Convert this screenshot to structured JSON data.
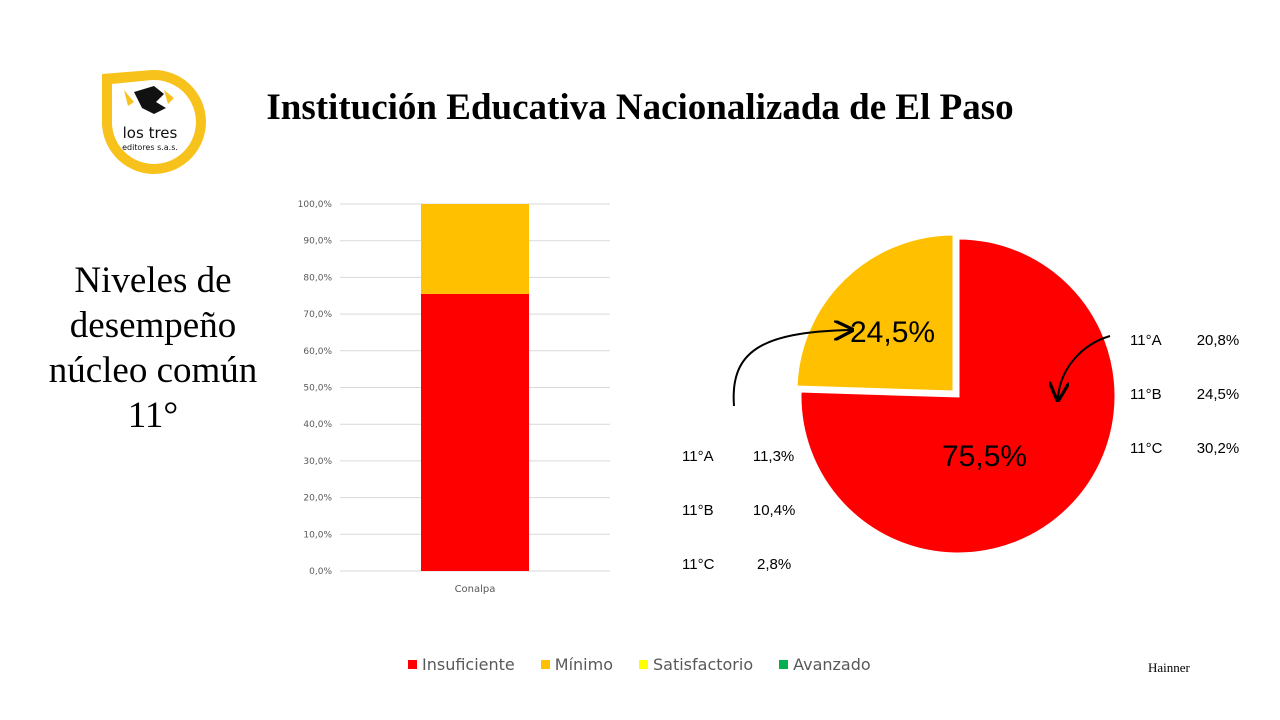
{
  "logo": {
    "brand_line1": "los tres",
    "brand_line2": "editores s.a.s."
  },
  "title": "Institución Educativa Nacionalizada de El Paso",
  "side_title": "Niveles de desempeño núcleo común 11°",
  "colors": {
    "insuficiente": "#ff0000",
    "minimo": "#ffc000",
    "satisfactorio": "#ffff00",
    "avanzado": "#00b050",
    "logo_yellow": "#f7c21b"
  },
  "chart_data": [
    {
      "type": "bar",
      "stacked": true,
      "categories": [
        "Conalpa"
      ],
      "series": [
        {
          "name": "Insuficiente",
          "values": [
            75.5
          ]
        },
        {
          "name": "Mínimo",
          "values": [
            24.5
          ]
        },
        {
          "name": "Satisfactorio",
          "values": [
            0
          ]
        },
        {
          "name": "Avanzado",
          "values": [
            0
          ]
        }
      ],
      "ylim": [
        0,
        100
      ],
      "yticks": [
        "0,0%",
        "10,0%",
        "20,0%",
        "30,0%",
        "40,0%",
        "50,0%",
        "60,0%",
        "70,0%",
        "80,0%",
        "90,0%",
        "100,0%"
      ],
      "grid": true
    },
    {
      "type": "pie",
      "slices": [
        {
          "label": "75,5%",
          "value": 75.5,
          "color": "#ff0000"
        },
        {
          "label": "24,5%",
          "value": 24.5,
          "color": "#ffc000"
        }
      ]
    }
  ],
  "annotations": {
    "minimo_breakdown": [
      "11°A\t 11,3%",
      "11°B\t 10,4%",
      "11°C\t  2,8%"
    ],
    "insuficiente_breakdown": [
      "11°A\t20,8%",
      "11°B\t24,5%",
      "11°C\t30,2%"
    ]
  },
  "legend": [
    {
      "label": "Insuficiente",
      "color": "#ff0000"
    },
    {
      "label": "Mínimo",
      "color": "#ffc000"
    },
    {
      "label": "Satisfactorio",
      "color": "#ffff00"
    },
    {
      "label": "Avanzado",
      "color": "#00b050"
    }
  ],
  "author": "Hainner"
}
